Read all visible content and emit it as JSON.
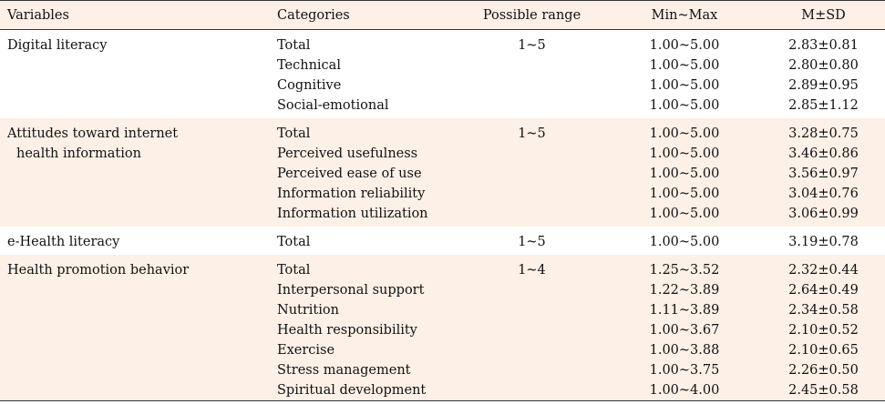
{
  "headers": [
    "Variables",
    "Categories",
    "Possible range",
    "Min~Max",
    "M±SD"
  ],
  "groups": [
    {
      "variable": "Digital literacy",
      "variable_cont": "",
      "range": "1~5",
      "rows": [
        {
          "category": "Total",
          "minmax": "1.00~5.00",
          "msd": "2.83±0.81"
        },
        {
          "category": "Technical",
          "minmax": "1.00~5.00",
          "msd": "2.80±0.80"
        },
        {
          "category": "Cognitive",
          "minmax": "1.00~5.00",
          "msd": "2.89±0.95"
        },
        {
          "category": "Social-emotional",
          "minmax": "1.00~5.00",
          "msd": "2.85±1.12"
        }
      ]
    },
    {
      "variable": "Attitudes toward internet",
      "variable_cont": "health information",
      "range": "1~5",
      "rows": [
        {
          "category": "Total",
          "minmax": "1.00~5.00",
          "msd": "3.28±0.75"
        },
        {
          "category": "Perceived usefulness",
          "minmax": "1.00~5.00",
          "msd": "3.46±0.86"
        },
        {
          "category": "Perceived ease of use",
          "minmax": "1.00~5.00",
          "msd": "3.56±0.97"
        },
        {
          "category": "Information reliability",
          "minmax": "1.00~5.00",
          "msd": "3.04±0.76"
        },
        {
          "category": "Information utilization",
          "minmax": "1.00~5.00",
          "msd": "3.06±0.99"
        }
      ]
    },
    {
      "variable": "e-Health literacy",
      "variable_cont": "",
      "range": "1~5",
      "rows": [
        {
          "category": "Total",
          "minmax": "1.00~5.00",
          "msd": "3.19±0.78"
        }
      ]
    },
    {
      "variable": "Health promotion behavior",
      "variable_cont": "",
      "range": "1~4",
      "rows": [
        {
          "category": "Total",
          "minmax": "1.25~3.52",
          "msd": "2.32±0.44"
        },
        {
          "category": "Interpersonal support",
          "minmax": "1.22~3.89",
          "msd": "2.64±0.49"
        },
        {
          "category": "Nutrition",
          "minmax": "1.11~3.89",
          "msd": "2.34±0.58"
        },
        {
          "category": "Health responsibility",
          "minmax": "1.00~3.67",
          "msd": "2.10±0.52"
        },
        {
          "category": "Exercise",
          "minmax": "1.00~3.88",
          "msd": "2.10±0.65"
        },
        {
          "category": "Stress management",
          "minmax": "1.00~3.75",
          "msd": "2.26±0.50"
        },
        {
          "category": "Spiritual development",
          "minmax": "1.00~4.00",
          "msd": "2.45±0.58"
        }
      ]
    }
  ]
}
